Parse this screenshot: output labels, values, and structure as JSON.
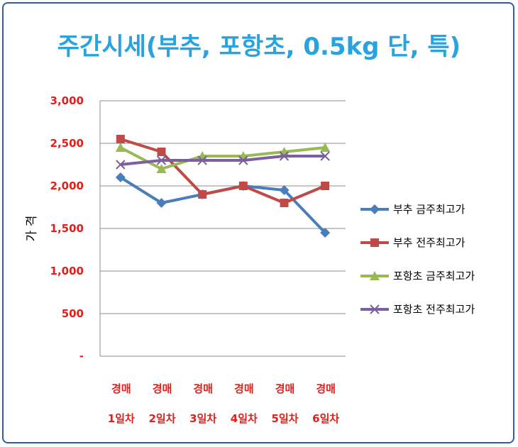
{
  "chart_data": {
    "type": "line",
    "title": "주간시세(부추, 포항초, 0.5kg 단, 특)",
    "ylabel": "가 격",
    "xlabel": "",
    "categories": [
      [
        "경매",
        "1일차"
      ],
      [
        "경매",
        "2일차"
      ],
      [
        "경매",
        "3일차"
      ],
      [
        "경매",
        "4일차"
      ],
      [
        "경매",
        "5일차"
      ],
      [
        "경매",
        "6일차"
      ]
    ],
    "ylim": [
      0,
      3000
    ],
    "yticks": [
      0,
      500,
      1000,
      1500,
      2000,
      2500,
      3000
    ],
    "ytick_labels": [
      "-",
      "500",
      "1,000",
      "1,500",
      "2,000",
      "2,500",
      "3,000"
    ],
    "grid": "horizontal",
    "legend_position": "right",
    "series": [
      {
        "name": "부추 금주최고가",
        "values": [
          2100,
          1800,
          1900,
          2000,
          1950,
          1450
        ],
        "color": "#4a7ebb",
        "marker": "diamond"
      },
      {
        "name": "부추 전주최고가",
        "values": [
          2550,
          2400,
          1900,
          2000,
          1800,
          2000
        ],
        "color": "#be4b48",
        "marker": "square"
      },
      {
        "name": "포항초 금주최고가",
        "values": [
          2450,
          2200,
          2350,
          2350,
          2400,
          2450
        ],
        "color": "#98b954",
        "marker": "triangle"
      },
      {
        "name": "포항초 전주최고가",
        "values": [
          2250,
          2300,
          2300,
          2300,
          2350,
          2350
        ],
        "color": "#7d5fa0",
        "marker": "x"
      }
    ]
  }
}
